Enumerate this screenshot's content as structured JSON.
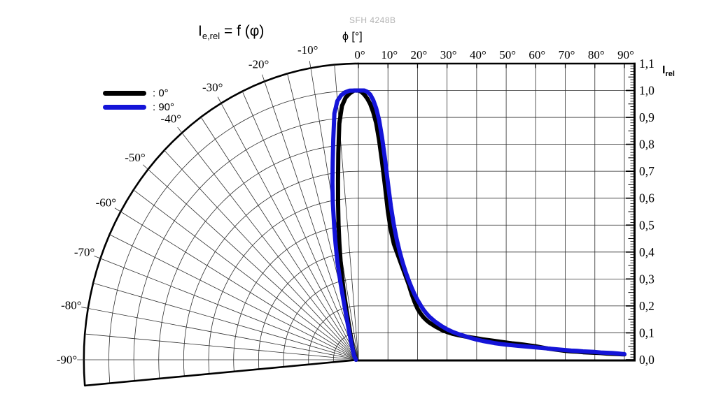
{
  "meta": {
    "watermark": "SFH 4248B"
  },
  "title": {
    "prefix": "I",
    "sub": "e,rel",
    "rest": " = f (φ)"
  },
  "axes": {
    "phi_label": "ϕ [°]",
    "top_tick_labels": [
      "0°",
      "10°",
      "20°",
      "30°",
      "40°",
      "50°",
      "60°",
      "70°",
      "80°",
      "90°"
    ],
    "polar_tick_labels": [
      "-10°",
      "-20°",
      "-30°",
      "-40°",
      "-50°",
      "-60°",
      "-70°",
      "-80°",
      "-90°"
    ],
    "right_tick_labels": [
      "1,1",
      "1,0",
      "0,9",
      "0,8",
      "0,7",
      "0,6",
      "0,5",
      "0,4",
      "0,3",
      "0,2",
      "0,1",
      "0,0"
    ],
    "right_label": {
      "main": "I",
      "sub": "rel"
    }
  },
  "legend": [
    {
      "label": ": 0°",
      "color": "#000000"
    },
    {
      "label": ": 90°",
      "color": "#1414d8"
    }
  ],
  "chart_data": {
    "type": "line",
    "title": "Ie,rel = f (ϕ)",
    "xlabel": "ϕ [°]",
    "ylabel": "Irel",
    "x_range_deg": [
      -95,
      90
    ],
    "ylim": [
      0,
      1.1
    ],
    "layout": "left half: polar grid (relative radiant intensity vs angle, -95° to 0°, radials every 5°, rings every 0.1); right half: cartesian grid 0°-90° x 0.0-1.1, gridlines every 10° and 0.1",
    "series": [
      {
        "name": "0°",
        "key": "0deg",
        "color": "#000000",
        "points": [
          [
            -90,
            0.009
          ],
          [
            -85,
            0.009
          ],
          [
            -80,
            0.01
          ],
          [
            -75,
            0.011
          ],
          [
            -70,
            0.012
          ],
          [
            -65,
            0.013
          ],
          [
            -60,
            0.015
          ],
          [
            -56,
            0.016
          ],
          [
            -52,
            0.018
          ],
          [
            -48,
            0.02
          ],
          [
            -44,
            0.023
          ],
          [
            -40,
            0.027
          ],
          [
            -36,
            0.031
          ],
          [
            -33,
            0.036
          ],
          [
            -30,
            0.042
          ],
          [
            -28,
            0.047
          ],
          [
            -26,
            0.053
          ],
          [
            -24,
            0.061
          ],
          [
            -22,
            0.071
          ],
          [
            -20,
            0.086
          ],
          [
            -19,
            0.095
          ],
          [
            -18,
            0.107
          ],
          [
            -17,
            0.122
          ],
          [
            -16,
            0.142
          ],
          [
            -15,
            0.17
          ],
          [
            -14,
            0.21
          ],
          [
            -13,
            0.26
          ],
          [
            -12,
            0.315
          ],
          [
            -11,
            0.375
          ],
          [
            -10,
            0.44
          ],
          [
            -9,
            0.51
          ],
          [
            -8,
            0.585
          ],
          [
            -7,
            0.67
          ],
          [
            -6,
            0.77
          ],
          [
            -5,
            0.88
          ],
          [
            -4,
            0.945
          ],
          [
            -3,
            0.975
          ],
          [
            -2,
            0.99
          ],
          [
            -1,
            1.0
          ],
          [
            0,
            1.0
          ],
          [
            1,
            0.995
          ],
          [
            2,
            0.985
          ],
          [
            3,
            0.97
          ],
          [
            4,
            0.95
          ],
          [
            5,
            0.92
          ],
          [
            6,
            0.88
          ],
          [
            7,
            0.815
          ],
          [
            8,
            0.735
          ],
          [
            9,
            0.645
          ],
          [
            10,
            0.55
          ],
          [
            11,
            0.48
          ],
          [
            12,
            0.43
          ],
          [
            13,
            0.4
          ],
          [
            14,
            0.37
          ],
          [
            15,
            0.34
          ],
          [
            16,
            0.31
          ],
          [
            17,
            0.28
          ],
          [
            18,
            0.245
          ],
          [
            19,
            0.215
          ],
          [
            20,
            0.19
          ],
          [
            21,
            0.172
          ],
          [
            22,
            0.158
          ],
          [
            23,
            0.147
          ],
          [
            24,
            0.138
          ],
          [
            26,
            0.124
          ],
          [
            28,
            0.112
          ],
          [
            30,
            0.103
          ],
          [
            32,
            0.096
          ],
          [
            34,
            0.091
          ],
          [
            36,
            0.087
          ],
          [
            38,
            0.083
          ],
          [
            40,
            0.08
          ],
          [
            42,
            0.076
          ],
          [
            44,
            0.073
          ],
          [
            46,
            0.07
          ],
          [
            48,
            0.067
          ],
          [
            50,
            0.064
          ],
          [
            52,
            0.061
          ],
          [
            54,
            0.059
          ],
          [
            56,
            0.056
          ],
          [
            58,
            0.053
          ],
          [
            60,
            0.05
          ],
          [
            62,
            0.046
          ],
          [
            64,
            0.042
          ],
          [
            66,
            0.039
          ],
          [
            68,
            0.036
          ],
          [
            70,
            0.033
          ],
          [
            72,
            0.031
          ],
          [
            74,
            0.03
          ],
          [
            76,
            0.028
          ],
          [
            78,
            0.027
          ],
          [
            80,
            0.026
          ],
          [
            82,
            0.025
          ],
          [
            84,
            0.023
          ],
          [
            86,
            0.022
          ],
          [
            88,
            0.021
          ],
          [
            90,
            0.02
          ]
        ]
      },
      {
        "name": "90°",
        "key": "90deg",
        "color": "#1414d8",
        "points": [
          [
            -90,
            0.01
          ],
          [
            -85,
            0.01
          ],
          [
            -80,
            0.011
          ],
          [
            -75,
            0.012
          ],
          [
            -70,
            0.013
          ],
          [
            -65,
            0.014
          ],
          [
            -60,
            0.016
          ],
          [
            -56,
            0.018
          ],
          [
            -52,
            0.02
          ],
          [
            -48,
            0.023
          ],
          [
            -44,
            0.026
          ],
          [
            -40,
            0.03
          ],
          [
            -36,
            0.035
          ],
          [
            -33,
            0.04
          ],
          [
            -30,
            0.047
          ],
          [
            -28,
            0.054
          ],
          [
            -26,
            0.062
          ],
          [
            -24,
            0.072
          ],
          [
            -22,
            0.085
          ],
          [
            -21,
            0.093
          ],
          [
            -20,
            0.104
          ],
          [
            -19,
            0.118
          ],
          [
            -18,
            0.135
          ],
          [
            -17,
            0.158
          ],
          [
            -16,
            0.19
          ],
          [
            -15,
            0.235
          ],
          [
            -14,
            0.3
          ],
          [
            -13,
            0.375
          ],
          [
            -12,
            0.44
          ],
          [
            -11,
            0.51
          ],
          [
            -10,
            0.59
          ],
          [
            -9,
            0.665
          ],
          [
            -8,
            0.74
          ],
          [
            -7,
            0.825
          ],
          [
            -6,
            0.92
          ],
          [
            -5,
            0.965
          ],
          [
            -4,
            0.985
          ],
          [
            -3,
            0.995
          ],
          [
            -2,
            1.0
          ],
          [
            -1,
            1.0
          ],
          [
            0,
            1.0
          ],
          [
            1,
            1.0
          ],
          [
            2,
            1.0
          ],
          [
            3,
            0.995
          ],
          [
            4,
            0.985
          ],
          [
            5,
            0.965
          ],
          [
            6,
            0.935
          ],
          [
            7,
            0.89
          ],
          [
            8,
            0.825
          ],
          [
            9,
            0.745
          ],
          [
            10,
            0.655
          ],
          [
            11,
            0.57
          ],
          [
            12,
            0.5
          ],
          [
            13,
            0.445
          ],
          [
            14,
            0.4
          ],
          [
            15,
            0.36
          ],
          [
            16,
            0.325
          ],
          [
            17,
            0.295
          ],
          [
            18,
            0.268
          ],
          [
            19,
            0.243
          ],
          [
            20,
            0.222
          ],
          [
            21,
            0.203
          ],
          [
            22,
            0.186
          ],
          [
            23,
            0.172
          ],
          [
            24,
            0.16
          ],
          [
            26,
            0.141
          ],
          [
            28,
            0.126
          ],
          [
            30,
            0.113
          ],
          [
            32,
            0.103
          ],
          [
            34,
            0.095
          ],
          [
            36,
            0.088
          ],
          [
            38,
            0.081
          ],
          [
            40,
            0.075
          ],
          [
            42,
            0.07
          ],
          [
            44,
            0.066
          ],
          [
            46,
            0.062
          ],
          [
            48,
            0.059
          ],
          [
            50,
            0.056
          ],
          [
            52,
            0.054
          ],
          [
            54,
            0.052
          ],
          [
            56,
            0.05
          ],
          [
            58,
            0.048
          ],
          [
            60,
            0.046
          ],
          [
            62,
            0.044
          ],
          [
            64,
            0.042
          ],
          [
            66,
            0.04
          ],
          [
            68,
            0.038
          ],
          [
            70,
            0.036
          ],
          [
            72,
            0.034
          ],
          [
            74,
            0.033
          ],
          [
            76,
            0.031
          ],
          [
            78,
            0.03
          ],
          [
            80,
            0.029
          ],
          [
            82,
            0.027
          ],
          [
            84,
            0.026
          ],
          [
            86,
            0.025
          ],
          [
            88,
            0.023
          ],
          [
            90,
            0.021
          ]
        ]
      }
    ]
  }
}
